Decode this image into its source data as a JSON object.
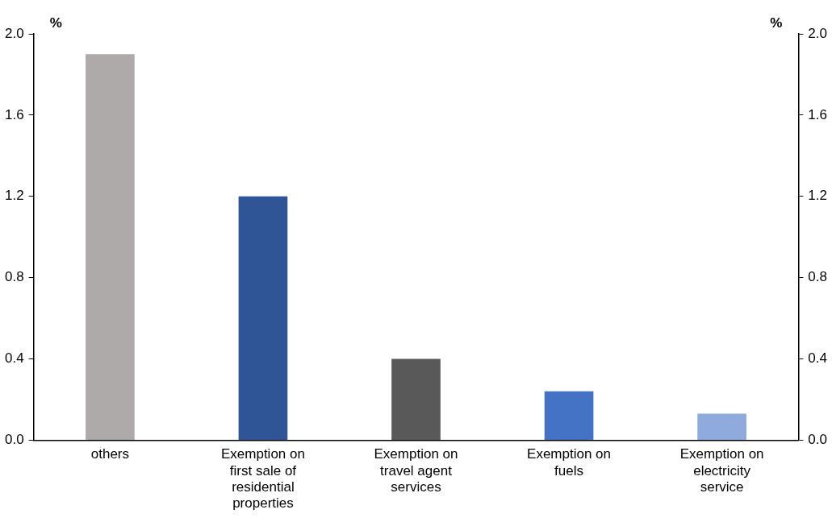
{
  "chart_data": {
    "type": "bar",
    "categories": [
      "others",
      "Exemption on first sale of residential properties",
      "Exemption on travel agent services",
      "Exemption on fuels",
      "Exemption on electricity service"
    ],
    "values": [
      1.9,
      1.2,
      0.4,
      0.24,
      0.13
    ],
    "colors": [
      "#aeaaaa",
      "#2f5597",
      "#595959",
      "#4472c4",
      "#8faadc"
    ],
    "ylabel": "%",
    "y2label": "%",
    "ylim": [
      0,
      2
    ],
    "yticks": [
      {
        "value": 0,
        "label": "0.0"
      },
      {
        "value": 0.4,
        "label": "0.4"
      },
      {
        "value": 0.8,
        "label": "0.8"
      },
      {
        "value": 1.2,
        "label": "1.2"
      },
      {
        "value": 1.6,
        "label": "1.6"
      },
      {
        "value": 2,
        "label": "2.0"
      }
    ],
    "y2lim": [
      0,
      2
    ],
    "y2ticks": [
      {
        "value": 0,
        "label": "0.0"
      },
      {
        "value": 0.4,
        "label": "0.4"
      },
      {
        "value": 0.8,
        "label": "0.8"
      },
      {
        "value": 1.2,
        "label": "1.2"
      },
      {
        "value": 1.6,
        "label": "1.6"
      },
      {
        "value": 2,
        "label": "2.0"
      }
    ],
    "grid": false,
    "legend": false
  }
}
